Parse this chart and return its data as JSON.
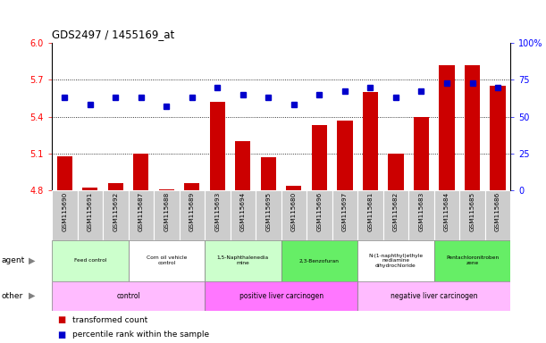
{
  "title": "GDS2497 / 1455169_at",
  "samples": [
    "GSM115690",
    "GSM115691",
    "GSM115692",
    "GSM115687",
    "GSM115688",
    "GSM115689",
    "GSM115693",
    "GSM115694",
    "GSM115695",
    "GSM115680",
    "GSM115696",
    "GSM115697",
    "GSM115681",
    "GSM115682",
    "GSM115683",
    "GSM115684",
    "GSM115685",
    "GSM115686"
  ],
  "bar_values": [
    5.08,
    4.82,
    4.86,
    5.1,
    4.81,
    4.86,
    5.52,
    5.2,
    5.07,
    4.84,
    5.33,
    5.37,
    5.6,
    5.1,
    5.4,
    5.82,
    5.82,
    5.65
  ],
  "percentile_values": [
    63,
    58,
    63,
    63,
    57,
    63,
    70,
    65,
    63,
    58,
    65,
    67,
    70,
    63,
    67,
    73,
    73,
    70
  ],
  "ymin": 4.8,
  "ymax": 6.0,
  "yticks": [
    4.8,
    5.1,
    5.4,
    5.7,
    6.0
  ],
  "y2min": 0,
  "y2max": 100,
  "y2ticks": [
    0,
    25,
    50,
    75,
    100
  ],
  "bar_color": "#cc0000",
  "dot_color": "#0000cc",
  "agent_groups": [
    {
      "label": "Feed control",
      "start": 0,
      "end": 3,
      "color": "#ccffcc"
    },
    {
      "label": "Corn oil vehicle\ncontrol",
      "start": 3,
      "end": 6,
      "color": "#ffffff"
    },
    {
      "label": "1,5-Naphthalenedia\nmine",
      "start": 6,
      "end": 9,
      "color": "#ccffcc"
    },
    {
      "label": "2,3-Benzofuran",
      "start": 9,
      "end": 12,
      "color": "#66ee66"
    },
    {
      "label": "N-(1-naphthyl)ethyle\nnediamine\ndihydrochloride",
      "start": 12,
      "end": 15,
      "color": "#ffffff"
    },
    {
      "label": "Pentachloronitroben\nzene",
      "start": 15,
      "end": 18,
      "color": "#66ee66"
    }
  ],
  "other_groups": [
    {
      "label": "control",
      "start": 0,
      "end": 6,
      "color": "#ffbbff"
    },
    {
      "label": "positive liver carcinogen",
      "start": 6,
      "end": 12,
      "color": "#ff77ff"
    },
    {
      "label": "negative liver carcinogen",
      "start": 12,
      "end": 18,
      "color": "#ffbbff"
    }
  ],
  "legend_bar_label": "transformed count",
  "legend_dot_label": "percentile rank within the sample",
  "tick_bg_color": "#cccccc",
  "plot_bg_color": "#ffffff"
}
